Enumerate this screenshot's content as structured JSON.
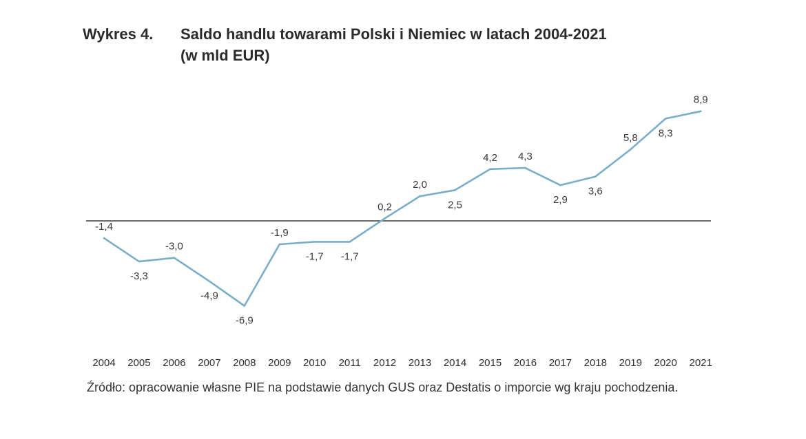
{
  "figure": {
    "label": "Wykres 4.",
    "title_line1": "Saldo handlu towarami Polski i Niemiec w latach 2004-2021",
    "title_line2": "(w mld EUR)",
    "source": "Źródło: opracowanie własne PIE na podstawie danych GUS oraz Destatis o imporcie wg kraju pochodzenia."
  },
  "chart_data": {
    "type": "line",
    "title": "Saldo handlu towarami Polski i Niemiec w latach 2004-2021 (w mld EUR)",
    "xlabel": "",
    "ylabel": "",
    "categories": [
      "2004",
      "2005",
      "2006",
      "2007",
      "2008",
      "2009",
      "2010",
      "2011",
      "2012",
      "2013",
      "2014",
      "2015",
      "2016",
      "2017",
      "2018",
      "2019",
      "2020",
      "2021"
    ],
    "series": [
      {
        "values": [
          -1.4,
          -3.3,
          -3.0,
          -4.9,
          -6.9,
          -1.9,
          -1.7,
          -1.7,
          0.2,
          2.0,
          2.5,
          4.2,
          4.3,
          2.9,
          3.6,
          5.8,
          8.3,
          8.9
        ],
        "labels": [
          "-1,4",
          "-3,3",
          "-3,0",
          "-4,9",
          "-6,9",
          "-1,9",
          "-1,7",
          "-1,7",
          "0,2",
          "2,0",
          "2,5",
          "4,2",
          "4,3",
          "2,9",
          "3,6",
          "5,8",
          "8,3",
          "8,9"
        ],
        "color": "#7aaec8"
      }
    ],
    "ylim": [
      -6.9,
      8.9
    ],
    "zero_line_color": "#555555",
    "grid": false,
    "legend": "none"
  }
}
